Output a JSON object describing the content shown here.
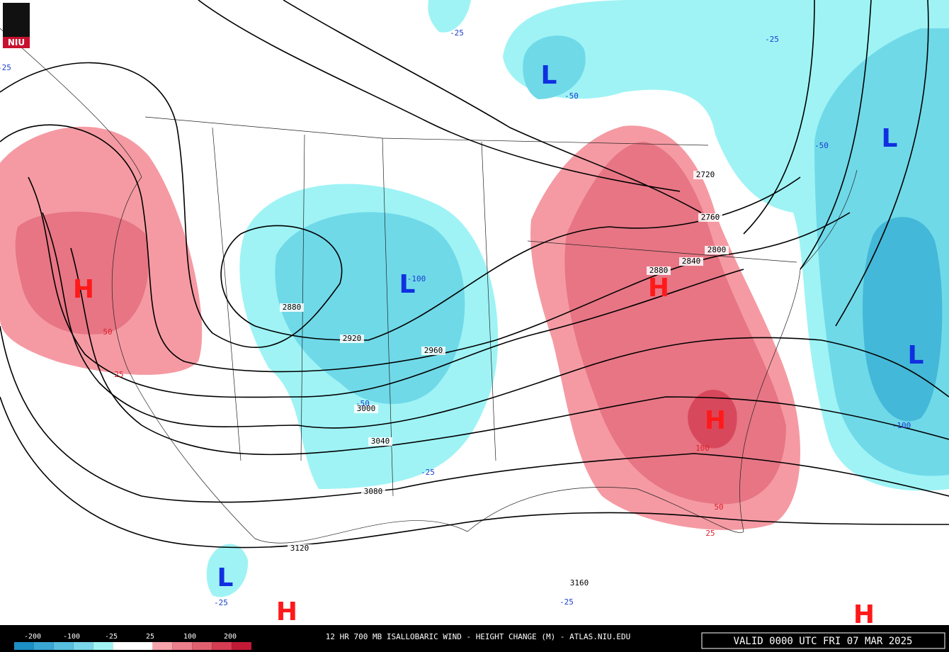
{
  "logo": "NIU",
  "title": "12 HR 700 MB ISALLOBARIC WIND - HEIGHT CHANGE (M) - ATLAS.NIU.EDU",
  "valid": "VALID 0000 UTC FRI 07 MAR 2025",
  "legend": {
    "labels": [
      -200,
      -100,
      -25,
      25,
      100,
      200
    ],
    "colors": [
      "#1c8fc4",
      "#3aa6d4",
      "#58bfe0",
      "#7ad6ea",
      "#a0f4f4",
      "#ffffff",
      "#ffffff",
      "#f6a3ab",
      "#ec7f8c",
      "#e0606f",
      "#d43d52",
      "#c21a36"
    ]
  },
  "contour_labels": [
    2720,
    2760,
    2800,
    2840,
    2880,
    2880,
    2920,
    2960,
    3000,
    3040,
    3080,
    3120,
    3160
  ],
  "height_change_labels": [
    -25,
    -50,
    -25,
    -50,
    -25,
    -100,
    50,
    25,
    -50,
    -25,
    100,
    50,
    25,
    -100,
    -25,
    -25
  ],
  "centers": [
    "L",
    "L",
    "L",
    "H",
    "H",
    "L",
    "H",
    "L",
    "H",
    "H"
  ]
}
